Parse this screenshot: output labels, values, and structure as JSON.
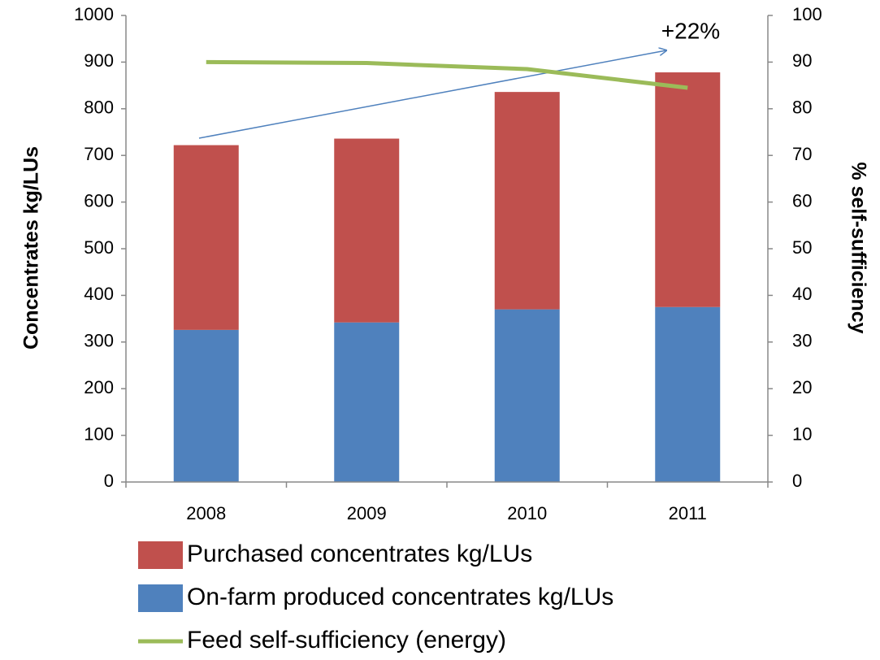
{
  "chart_data": {
    "type": "bar",
    "categories": [
      "2008",
      "2009",
      "2010",
      "2011"
    ],
    "series": [
      {
        "name": "On-farm produced concentrates kg/LUs",
        "color": "#4f81bd",
        "values": [
          326,
          342,
          370,
          375
        ]
      },
      {
        "name": "Purchased concentrates kg/LUs",
        "color": "#c0504d",
        "values": [
          396,
          394,
          466,
          503
        ]
      },
      {
        "name": "Feed self-sufficiency (energy)",
        "color": "#9bbb59",
        "type": "line",
        "axis": "y2",
        "values": [
          90,
          89.8,
          88.5,
          84.5
        ]
      }
    ],
    "stacked": true,
    "ylabel": "Concentrates kg/LUs",
    "y2label": "% self-sufficiency",
    "ylim": [
      0,
      1000
    ],
    "yticks": [
      0,
      100,
      200,
      300,
      400,
      500,
      600,
      700,
      800,
      900,
      1000
    ],
    "y2lim": [
      0,
      100
    ],
    "y2ticks": [
      0,
      10,
      20,
      30,
      40,
      50,
      60,
      70,
      80,
      90,
      100
    ],
    "annotation": "+22%",
    "grid": false
  }
}
